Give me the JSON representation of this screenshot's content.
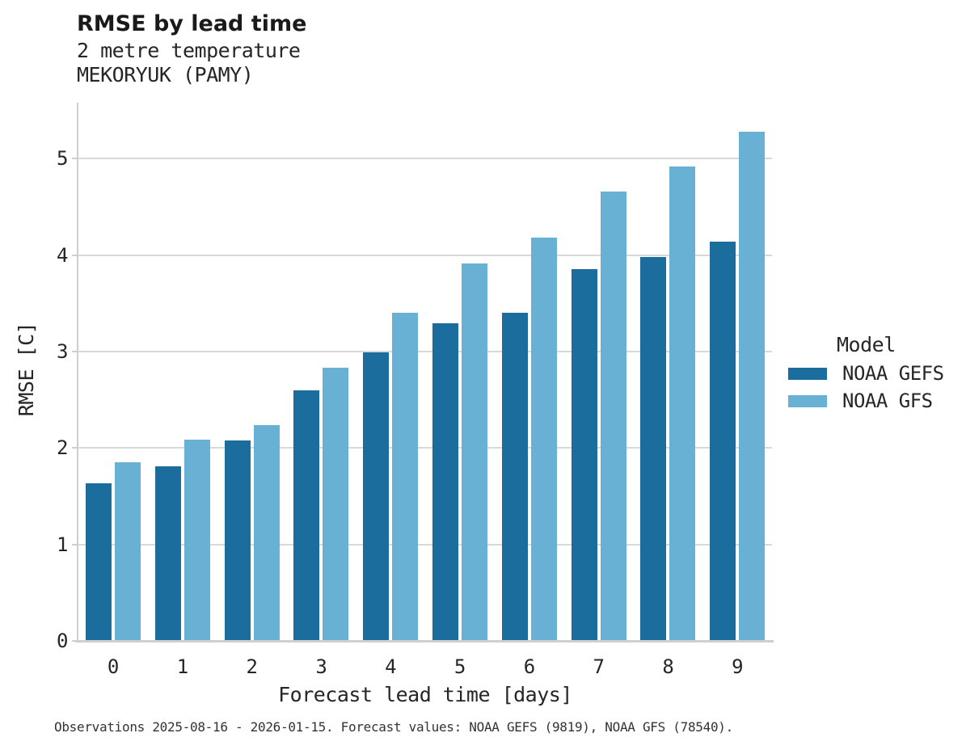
{
  "header": {
    "title": "RMSE by lead time",
    "subtitle1": "2 metre temperature",
    "subtitle2": "MEKORYUK (PAMY)"
  },
  "chart_data": {
    "type": "bar",
    "title": "RMSE by lead time",
    "subtitle": [
      "2 metre temperature",
      "MEKORYUK (PAMY)"
    ],
    "categories": [
      "0",
      "1",
      "2",
      "3",
      "4",
      "5",
      "6",
      "7",
      "8",
      "9"
    ],
    "series": [
      {
        "name": "NOAA GEFS",
        "color": "#1a6d9d",
        "values": [
          1.63,
          1.81,
          2.08,
          2.6,
          2.99,
          3.29,
          3.4,
          3.85,
          3.98,
          4.14
        ]
      },
      {
        "name": "NOAA GFS",
        "color": "#69b0d5",
        "values": [
          1.85,
          2.09,
          2.24,
          2.83,
          3.4,
          3.91,
          4.18,
          4.66,
          4.92,
          5.28
        ]
      }
    ],
    "xlabel": "Forecast lead time [days]",
    "ylabel": "RMSE [C]",
    "ylim": [
      0,
      5.58
    ],
    "yticks": [
      0,
      1,
      2,
      3,
      4,
      5
    ],
    "grid": true,
    "legend_title": "Model",
    "legend_position": "right"
  },
  "colors": {
    "gefs": "#1a6d9d",
    "gfs": "#69b0d5",
    "gridline": "#d9d9d9",
    "spine": "#cfcfcf",
    "text": "#262626",
    "title_text": "#1a1a1a"
  },
  "footer": {
    "caption": "Observations 2025-08-16 - 2026-01-15. Forecast values: NOAA GEFS (9819), NOAA GFS (78540)."
  }
}
